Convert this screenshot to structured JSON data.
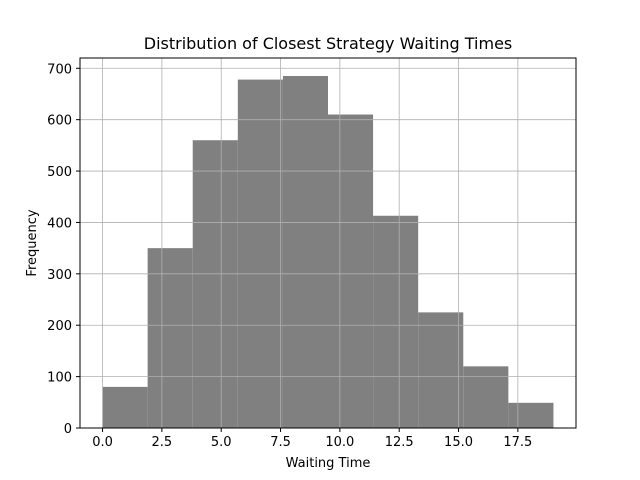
{
  "chart_data": {
    "type": "bar",
    "title": "Distribution of Closest Strategy Waiting Times",
    "xlabel": "Waiting Time",
    "ylabel": "Frequency",
    "xlim": [
      -0.95,
      19.95
    ],
    "ylim": [
      0,
      720
    ],
    "grid": true,
    "bar_color": "#808080",
    "bins": [
      {
        "x0": 0.0,
        "x1": 1.9,
        "count": 80
      },
      {
        "x0": 1.9,
        "x1": 3.8,
        "count": 350
      },
      {
        "x0": 3.8,
        "x1": 5.7,
        "count": 560
      },
      {
        "x0": 5.7,
        "x1": 7.6,
        "count": 678
      },
      {
        "x0": 7.6,
        "x1": 9.5,
        "count": 685
      },
      {
        "x0": 9.5,
        "x1": 11.4,
        "count": 610
      },
      {
        "x0": 11.4,
        "x1": 13.3,
        "count": 413
      },
      {
        "x0": 13.3,
        "x1": 15.2,
        "count": 225
      },
      {
        "x0": 15.2,
        "x1": 17.1,
        "count": 120
      },
      {
        "x0": 17.1,
        "x1": 19.0,
        "count": 49
      }
    ],
    "x_ticks": [
      {
        "value": 0.0,
        "label": "0.0"
      },
      {
        "value": 2.5,
        "label": "2.5"
      },
      {
        "value": 5.0,
        "label": "5.0"
      },
      {
        "value": 7.5,
        "label": "7.5"
      },
      {
        "value": 10.0,
        "label": "10.0"
      },
      {
        "value": 12.5,
        "label": "12.5"
      },
      {
        "value": 15.0,
        "label": "15.0"
      },
      {
        "value": 17.5,
        "label": "17.5"
      }
    ],
    "y_ticks": [
      {
        "value": 0,
        "label": "0"
      },
      {
        "value": 100,
        "label": "100"
      },
      {
        "value": 200,
        "label": "200"
      },
      {
        "value": 300,
        "label": "300"
      },
      {
        "value": 400,
        "label": "400"
      },
      {
        "value": 500,
        "label": "500"
      },
      {
        "value": 600,
        "label": "600"
      },
      {
        "value": 700,
        "label": "700"
      }
    ]
  }
}
